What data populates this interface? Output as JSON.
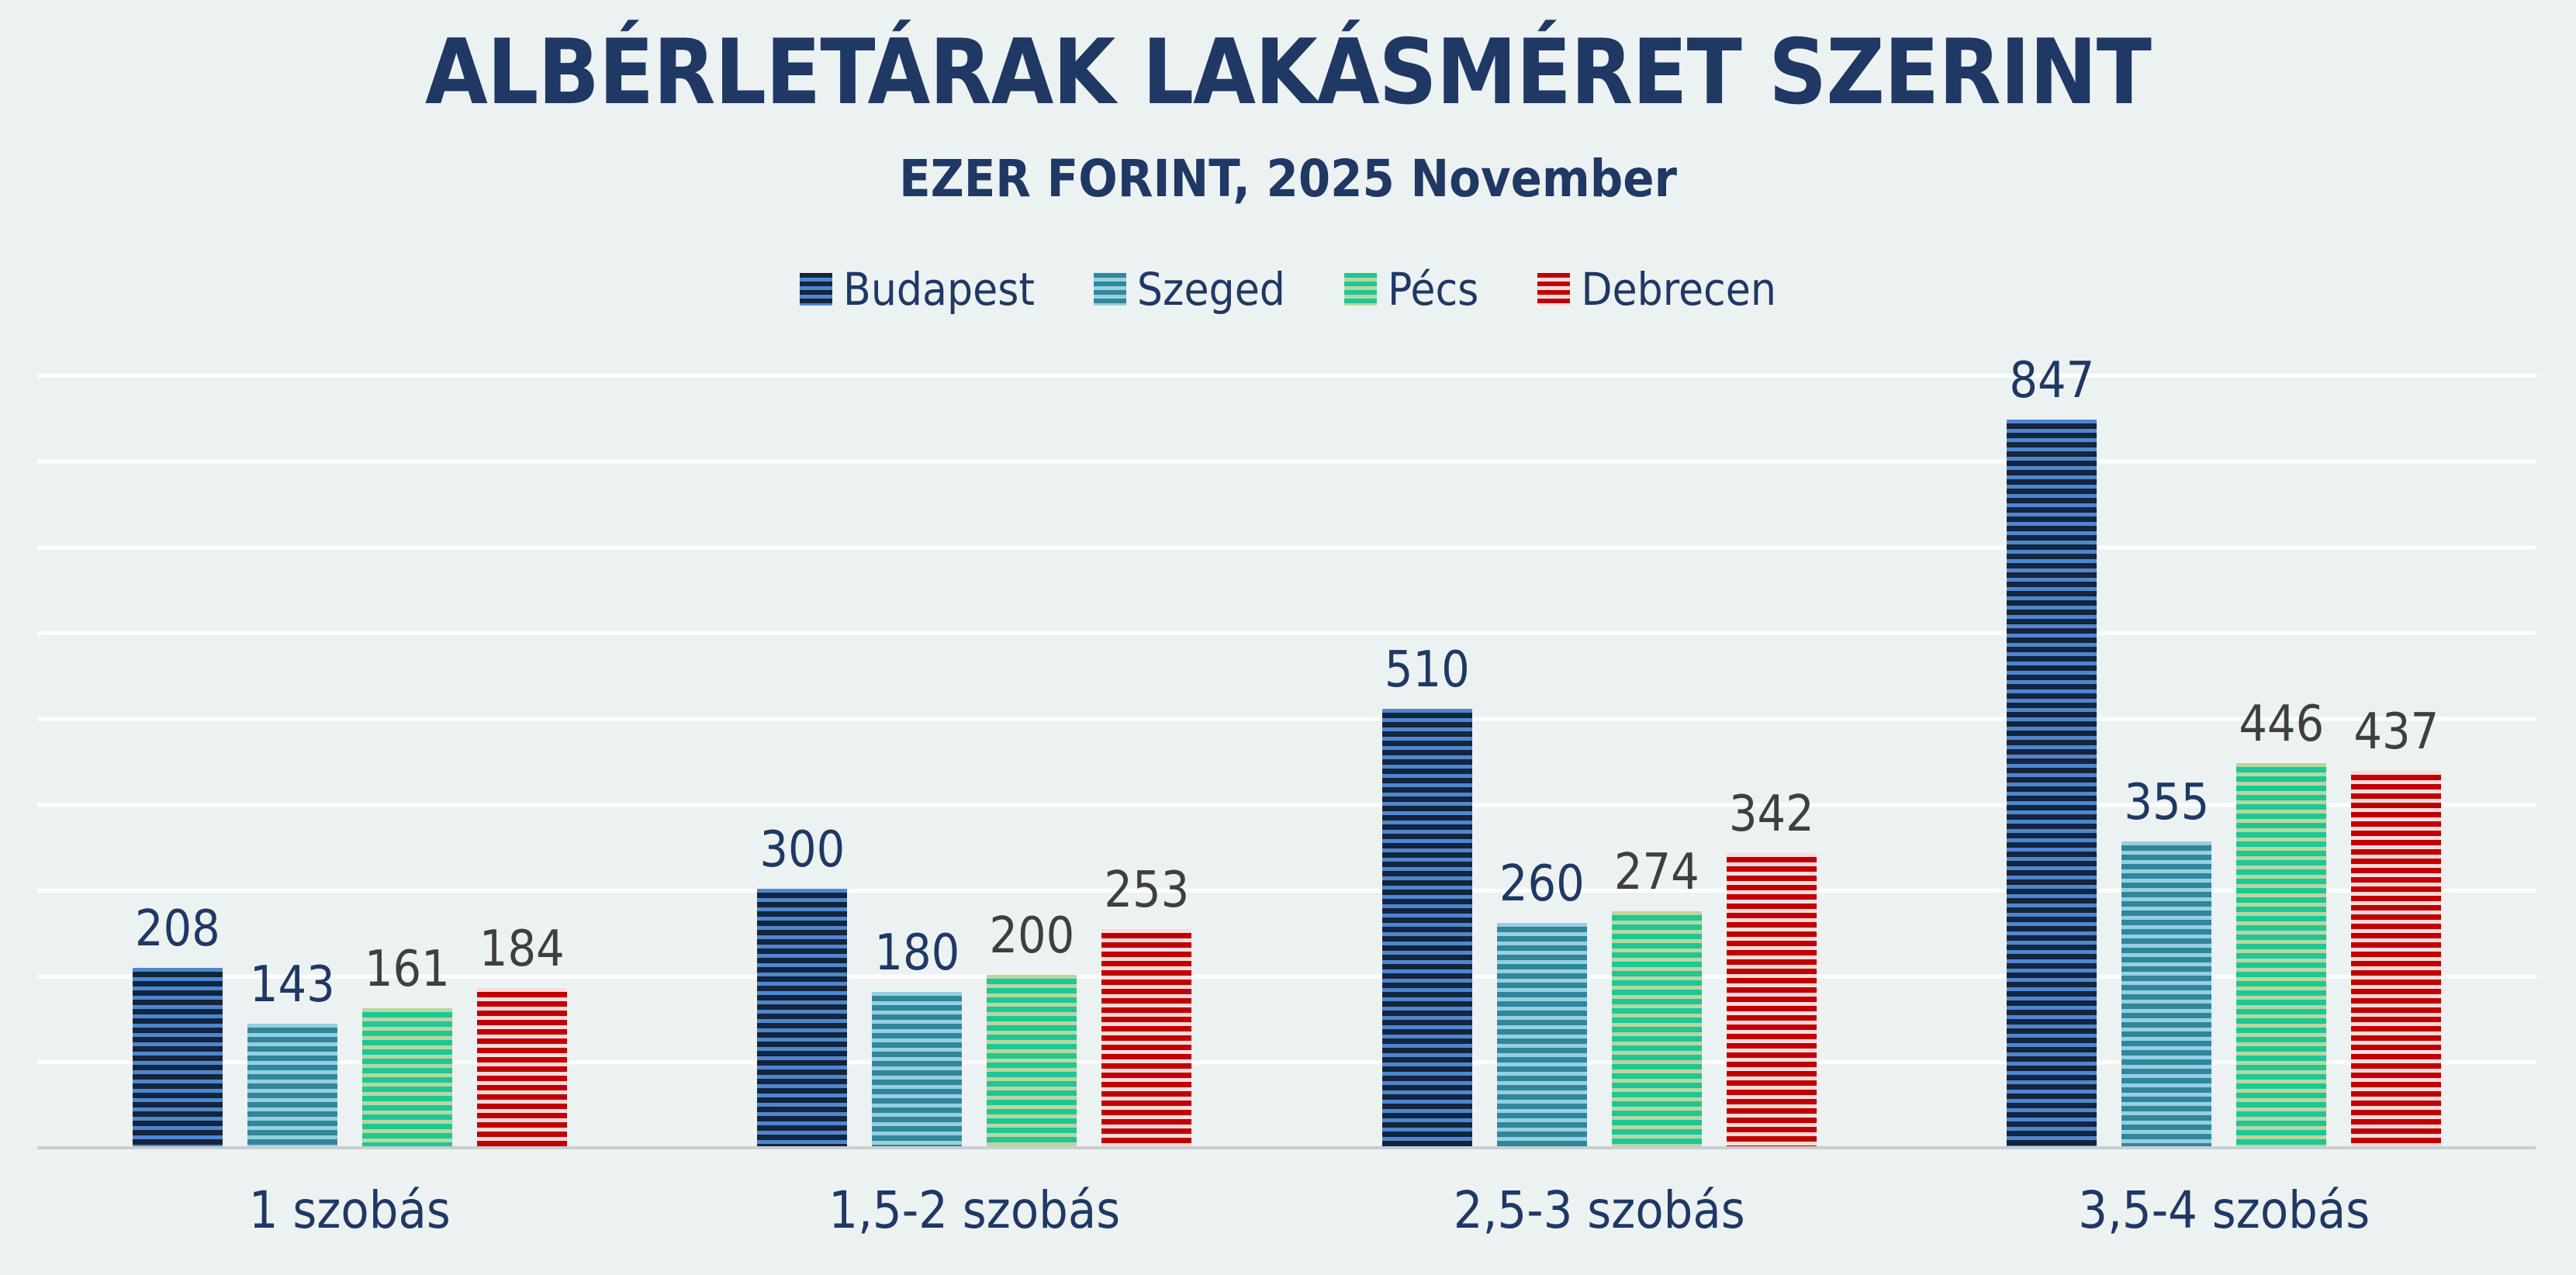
{
  "header": {
    "title": "ALBÉRLETÁRAK LAKÁSMÉRET SZERINT",
    "subtitle": "EZER FORINT, 2025 November"
  },
  "colors": {
    "background": "#ecf2f2",
    "gridline": "#ffffff",
    "axis_line": "#c9ced1",
    "title_text": "#1f3864",
    "category_text": "#1f3864",
    "value_label_navy": "#1f3864",
    "value_label_gray": "#3f3f3f"
  },
  "chart_data": {
    "type": "bar",
    "title": "ALBÉRLETÁRAK LAKÁSMÉRET SZERINT",
    "subtitle": "EZER FORINT, 2025 November",
    "categories": [
      "1 szobás",
      "1,5-2 szobás",
      "2,5-3 szobás",
      "3,5-4 szobás"
    ],
    "series": [
      {
        "name": "Budapest",
        "values": [
          208,
          300,
          510,
          847
        ],
        "stripe_dark": "#14253e",
        "stripe_light": "#4f86ce",
        "value_label_color": "#1f3864"
      },
      {
        "name": "Szeged",
        "values": [
          143,
          180,
          260,
          355
        ],
        "stripe_dark": "#31869b",
        "stripe_light": "#96cfdf",
        "value_label_color": "#1f3864"
      },
      {
        "name": "Pécs",
        "values": [
          161,
          200,
          274,
          446
        ],
        "stripe_dark": "#1ec795",
        "stripe_light": "#b8d69e",
        "value_label_color": "#3f3f3f"
      },
      {
        "name": "Debrecen",
        "values": [
          184,
          253,
          342,
          437
        ],
        "stripe_dark": "#c00000",
        "stripe_light": "#fbdbdb",
        "value_label_color": "#3f3f3f"
      }
    ],
    "ylim": [
      0,
      900
    ],
    "gridline_step": 100,
    "grid": true,
    "y_axis_labels_visible": false,
    "legend_position": "top",
    "data_labels": true
  }
}
